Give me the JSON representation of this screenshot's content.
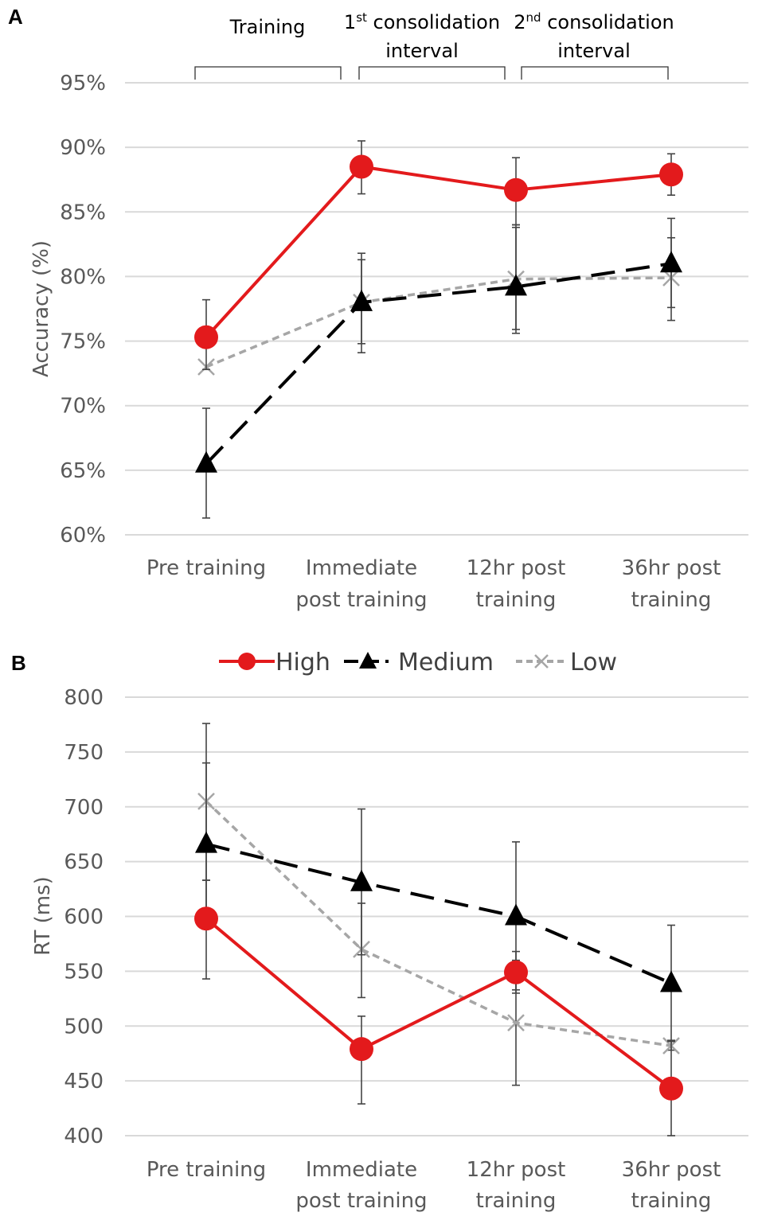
{
  "panels": {
    "A": {
      "label": "A",
      "y_title": "Accuracy (%)",
      "y_ticks": [
        "60%",
        "65%",
        "70%",
        "75%",
        "80%",
        "85%",
        "90%",
        "95%"
      ],
      "brackets": [
        {
          "lines": [
            "Training"
          ]
        },
        {
          "lines": [
            "1",
            "st",
            " consolidation",
            "interval"
          ]
        },
        {
          "lines": [
            "2",
            "nd",
            " consolidation",
            "interval"
          ]
        }
      ]
    },
    "B": {
      "label": "B",
      "y_title": "RT (ms)",
      "y_ticks": [
        "400",
        "450",
        "500",
        "550",
        "600",
        "650",
        "700",
        "750",
        "800"
      ]
    }
  },
  "categories": [
    [
      "Pre training",
      ""
    ],
    [
      "Immediate",
      "post training"
    ],
    [
      "12hr post",
      "training"
    ],
    [
      "36hr post",
      "training"
    ]
  ],
  "legend": [
    "High",
    "Medium",
    "Low"
  ],
  "colors": {
    "high": "#e31a1c",
    "medium": "#000000",
    "low": "#a6a6a6",
    "axis_text": "#595959",
    "grid": "#d9d9d9"
  },
  "chart_data": [
    {
      "type": "line",
      "title": "",
      "ylabel": "Accuracy (%)",
      "ylim": [
        60,
        95
      ],
      "categories": [
        "Pre training",
        "Immediate post training",
        "12hr post training",
        "36hr post training"
      ],
      "series": [
        {
          "name": "High",
          "marker": "circle",
          "values": [
            75.3,
            88.5,
            86.7,
            87.9
          ],
          "err_lo": [
            72.8,
            86.4,
            84.0,
            86.3
          ],
          "err_hi": [
            78.2,
            90.5,
            89.2,
            89.5
          ]
        },
        {
          "name": "Medium",
          "marker": "triangle",
          "values": [
            65.5,
            78.0,
            79.2,
            81.0
          ],
          "err_lo": [
            61.3,
            74.1,
            75.6,
            77.6
          ],
          "err_hi": [
            69.8,
            81.8,
            83.8,
            84.5
          ]
        },
        {
          "name": "Low",
          "marker": "x",
          "values": [
            73.0,
            78.0,
            79.8,
            79.9
          ],
          "err_lo": [
            73.0,
            74.8,
            75.9,
            76.6
          ],
          "err_hi": [
            73.0,
            81.3,
            84.0,
            83.0
          ]
        }
      ]
    },
    {
      "type": "line",
      "title": "",
      "ylabel": "RT (ms)",
      "ylim": [
        400,
        800
      ],
      "categories": [
        "Pre training",
        "Immediate post training",
        "12hr post training",
        "36hr post training"
      ],
      "series": [
        {
          "name": "High",
          "marker": "circle",
          "values": [
            598,
            479,
            549,
            443
          ],
          "err_lo": [
            543,
            429,
            530,
            400
          ],
          "err_hi": [
            633,
            509,
            568,
            487
          ]
        },
        {
          "name": "Medium",
          "marker": "triangle",
          "values": [
            666,
            631,
            600,
            539
          ],
          "err_lo": [
            598,
            565,
            533,
            486
          ],
          "err_hi": [
            740,
            698,
            668,
            592
          ]
        },
        {
          "name": "Low",
          "marker": "x",
          "values": [
            705,
            570,
            503,
            482
          ],
          "err_lo": [
            633,
            526,
            446,
            478
          ],
          "err_hi": [
            776,
            612,
            560,
            486
          ]
        }
      ]
    }
  ]
}
